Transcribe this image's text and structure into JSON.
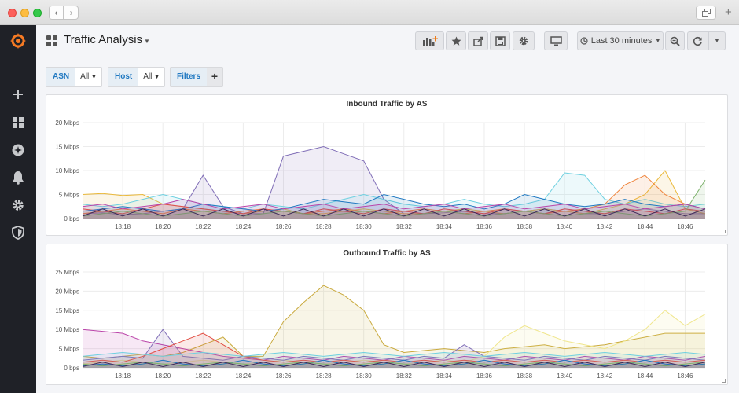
{
  "window": {
    "back_glyph": "‹",
    "fwd_glyph": "›",
    "newtab_glyph": "+"
  },
  "header": {
    "title": "Traffic Analysis",
    "time_range": "Last 30 minutes",
    "toolbar_icons": [
      "add-panel-icon",
      "star-icon",
      "share-icon",
      "save-icon",
      "settings-icon",
      "tv-mode-icon",
      "clock-icon",
      "zoom-out-icon",
      "refresh-icon"
    ]
  },
  "sidebar": {
    "icons": [
      "grafana-logo-icon",
      "plus-icon",
      "dashboards-icon",
      "explore-icon",
      "alerting-icon",
      "gear-icon",
      "shield-icon"
    ]
  },
  "variables": [
    {
      "label": "ASN",
      "value": "All"
    },
    {
      "label": "Host",
      "value": "All"
    }
  ],
  "filters": {
    "label": "Filters",
    "add": "+"
  },
  "colors": {
    "accent": "#1f78c1",
    "sidebar": "#1f2127",
    "logo": "#f57a24"
  },
  "chart_data": [
    {
      "type": "area",
      "title": "Inbound Traffic by AS",
      "x": [
        "18:16",
        "18:17",
        "18:18",
        "18:19",
        "18:20",
        "18:21",
        "18:22",
        "18:23",
        "18:24",
        "18:25",
        "18:26",
        "18:27",
        "18:28",
        "18:29",
        "18:30",
        "18:31",
        "18:32",
        "18:33",
        "18:34",
        "18:35",
        "18:36",
        "18:37",
        "18:38",
        "18:39",
        "18:40",
        "18:41",
        "18:42",
        "18:43",
        "18:44",
        "18:45",
        "18:46",
        "18:47"
      ],
      "x_ticks": [
        "18:18",
        "18:20",
        "18:22",
        "18:24",
        "18:26",
        "18:28",
        "18:30",
        "18:32",
        "18:34",
        "18:36",
        "18:38",
        "18:40",
        "18:42",
        "18:44",
        "18:46"
      ],
      "y_ticks": [
        "0 bps",
        "5 Mbps",
        "10 Mbps",
        "15 Mbps",
        "20 Mbps"
      ],
      "ylim": [
        0,
        20
      ],
      "grid": true,
      "series": [
        {
          "color": "#806eb7",
          "values": [
            1,
            1.2,
            0.8,
            1,
            1.5,
            2,
            9,
            2.5,
            1,
            1,
            13,
            14,
            15,
            13.5,
            12,
            4,
            1,
            1,
            1.2,
            1.5,
            1,
            1,
            1.5,
            2,
            1.5,
            1,
            1,
            1.5,
            2,
            1.5,
            1,
            1
          ]
        },
        {
          "color": "#eab839",
          "values": [
            5,
            5.2,
            4.8,
            5,
            3,
            2.5,
            2,
            1.5,
            1,
            1.5,
            2,
            1,
            1,
            1.5,
            2,
            1.5,
            1,
            1,
            1.5,
            2,
            1.5,
            1,
            1.5,
            2,
            1.5,
            1,
            2,
            3,
            5,
            10,
            2,
            1
          ]
        },
        {
          "color": "#6ed0e0",
          "values": [
            3,
            2.5,
            3,
            4,
            5,
            4,
            3,
            2.5,
            2,
            3,
            2.5,
            2,
            3,
            4,
            5,
            4,
            3,
            2.5,
            3,
            4,
            3,
            2.5,
            3,
            4,
            9.5,
            9,
            4,
            3,
            4,
            3,
            2.5,
            3
          ]
        },
        {
          "color": "#ef843c",
          "values": [
            1,
            1.5,
            2,
            1.5,
            1,
            2,
            1.5,
            1,
            1.5,
            2,
            1.5,
            1,
            1.5,
            2,
            1.5,
            1,
            1.5,
            2,
            1.5,
            1,
            1.5,
            2,
            1.5,
            1,
            1.5,
            2,
            3,
            7,
            9,
            5,
            3,
            2
          ]
        },
        {
          "color": "#e24d42",
          "values": [
            2,
            1.5,
            1,
            2,
            3,
            2.5,
            2,
            1.5,
            1,
            2,
            1.5,
            1,
            2,
            1.5,
            1,
            2,
            1.5,
            1,
            2,
            1.5,
            1,
            2,
            1.5,
            1,
            2,
            1.5,
            1,
            2,
            1.5,
            1,
            2,
            1.5
          ]
        },
        {
          "color": "#1f78c1",
          "values": [
            1.5,
            2,
            2.5,
            2,
            1.5,
            2,
            3,
            2.5,
            2,
            1.5,
            2,
            3,
            4,
            3.5,
            3,
            5,
            4,
            3,
            2.5,
            3,
            2,
            3,
            5,
            4,
            3,
            2.5,
            3,
            4,
            3,
            2.5,
            3,
            2
          ]
        },
        {
          "color": "#7eb26d",
          "values": [
            0.5,
            1,
            1.5,
            1,
            0.5,
            1,
            1.5,
            1,
            0.5,
            1,
            1.5,
            1,
            0.5,
            1,
            1.5,
            1,
            0.5,
            1,
            1.5,
            1,
            0.5,
            1,
            1.5,
            1,
            0.5,
            1,
            1.5,
            1,
            0.5,
            1,
            1.5,
            8
          ]
        },
        {
          "color": "#ba43a9",
          "values": [
            2.5,
            3,
            2,
            2.5,
            3,
            4,
            3,
            2,
            2.5,
            3,
            2,
            2.5,
            3,
            2,
            2.5,
            3,
            2,
            2.5,
            3,
            2,
            2.5,
            3,
            2,
            2.5,
            3,
            2,
            2.5,
            3,
            2,
            2.5,
            3,
            2
          ]
        },
        {
          "color": "#3f2b5b",
          "values": [
            0.5,
            2,
            0.5,
            2,
            0.5,
            2,
            0.5,
            2,
            0.5,
            2,
            0.5,
            2,
            0.5,
            2,
            0.5,
            2,
            0.5,
            2,
            0.5,
            2,
            0.5,
            2,
            0.5,
            2,
            0.5,
            2,
            0.5,
            2,
            0.5,
            2,
            0.5,
            2
          ]
        }
      ]
    },
    {
      "type": "area",
      "title": "Outbound Traffic by AS",
      "x": [
        "18:16",
        "18:17",
        "18:18",
        "18:19",
        "18:20",
        "18:21",
        "18:22",
        "18:23",
        "18:24",
        "18:25",
        "18:26",
        "18:27",
        "18:28",
        "18:29",
        "18:30",
        "18:31",
        "18:32",
        "18:33",
        "18:34",
        "18:35",
        "18:36",
        "18:37",
        "18:38",
        "18:39",
        "18:40",
        "18:41",
        "18:42",
        "18:43",
        "18:44",
        "18:45",
        "18:46",
        "18:47"
      ],
      "x_ticks": [
        "18:18",
        "18:20",
        "18:22",
        "18:24",
        "18:26",
        "18:28",
        "18:30",
        "18:32",
        "18:34",
        "18:36",
        "18:38",
        "18:40",
        "18:42",
        "18:44",
        "18:46"
      ],
      "y_ticks": [
        "0 bps",
        "5 Mbps",
        "10 Mbps",
        "15 Mbps",
        "20 Mbps",
        "25 Mbps"
      ],
      "ylim": [
        0,
        25
      ],
      "grid": true,
      "series": [
        {
          "color": "#c9a93b",
          "values": [
            3,
            2.5,
            3,
            3.5,
            3,
            4,
            6,
            8,
            3,
            3,
            12,
            17,
            21.5,
            19,
            15,
            6,
            4,
            4.5,
            5,
            4.5,
            4,
            5,
            5.5,
            6,
            5,
            5.5,
            6,
            7,
            8,
            9,
            9,
            9
          ]
        },
        {
          "color": "#f0e68c",
          "values": [
            1,
            1.5,
            2,
            1.5,
            1,
            1.5,
            2,
            1.5,
            1,
            1.5,
            2,
            1.5,
            1,
            1.5,
            2,
            1.5,
            1,
            1.5,
            2,
            1.5,
            3,
            8,
            11,
            9,
            7,
            6,
            5,
            7,
            10,
            15,
            11,
            14
          ]
        },
        {
          "color": "#ba43a9",
          "values": [
            10,
            9.5,
            9,
            7,
            6,
            5,
            4,
            3,
            2.5,
            2,
            3,
            2.5,
            2,
            3,
            2.5,
            2,
            3,
            2.5,
            2,
            3,
            2.5,
            2,
            3,
            2.5,
            2,
            3,
            2.5,
            2,
            3,
            2.5,
            2,
            3
          ]
        },
        {
          "color": "#806eb7",
          "values": [
            2,
            2.5,
            3,
            2.5,
            10,
            3,
            2.5,
            2,
            3,
            2.5,
            2,
            3,
            2.5,
            2,
            3,
            2.5,
            2,
            3,
            2.5,
            6,
            3,
            2.5,
            2,
            3,
            2.5,
            2,
            3,
            2.5,
            2,
            3,
            2.5,
            2
          ]
        },
        {
          "color": "#e24d42",
          "values": [
            1.5,
            2,
            1.5,
            3,
            5,
            7,
            9,
            6,
            3,
            2,
            1.5,
            2,
            1.5,
            2,
            1.5,
            2,
            1.5,
            2,
            1.5,
            2,
            1.5,
            2,
            1.5,
            2,
            1.5,
            2,
            1.5,
            2,
            1.5,
            2,
            1.5,
            2
          ]
        },
        {
          "color": "#6ed0e0",
          "values": [
            3,
            3.5,
            4,
            3.5,
            3,
            3.5,
            4,
            3.5,
            3,
            3.5,
            4,
            3.5,
            3,
            3.5,
            4,
            3.5,
            3,
            3.5,
            4,
            3.5,
            3,
            3.5,
            4,
            3.5,
            3,
            3.5,
            4,
            3.5,
            3,
            3.5,
            4,
            3.5
          ]
        },
        {
          "color": "#1f78c1",
          "values": [
            0.5,
            1,
            0.5,
            1,
            2,
            1,
            0.5,
            1,
            2,
            1,
            0.5,
            1,
            2,
            1,
            0.5,
            1,
            2,
            1,
            0.5,
            1,
            2,
            1,
            0.5,
            1,
            2,
            1,
            0.5,
            1,
            2,
            1,
            0.5,
            1
          ]
        },
        {
          "color": "#7eb26d",
          "values": [
            1,
            0.5,
            1,
            1.5,
            1,
            0.5,
            1,
            1.5,
            1,
            0.5,
            1,
            1.5,
            1,
            0.5,
            1,
            1.5,
            1,
            0.5,
            1,
            1.5,
            1,
            0.5,
            1,
            1.5,
            1,
            0.5,
            1,
            1.5,
            1,
            0.5,
            1,
            1.5
          ]
        },
        {
          "color": "#3f2b5b",
          "values": [
            0.3,
            1.5,
            0.3,
            1.5,
            0.3,
            1.5,
            0.3,
            1.5,
            0.3,
            1.5,
            0.3,
            1.5,
            0.3,
            1.5,
            0.3,
            1.5,
            0.3,
            1.5,
            0.3,
            1.5,
            0.3,
            1.5,
            0.3,
            1.5,
            0.3,
            1.5,
            0.3,
            1.5,
            0.3,
            1.5,
            0.3,
            1.5
          ]
        }
      ]
    }
  ]
}
